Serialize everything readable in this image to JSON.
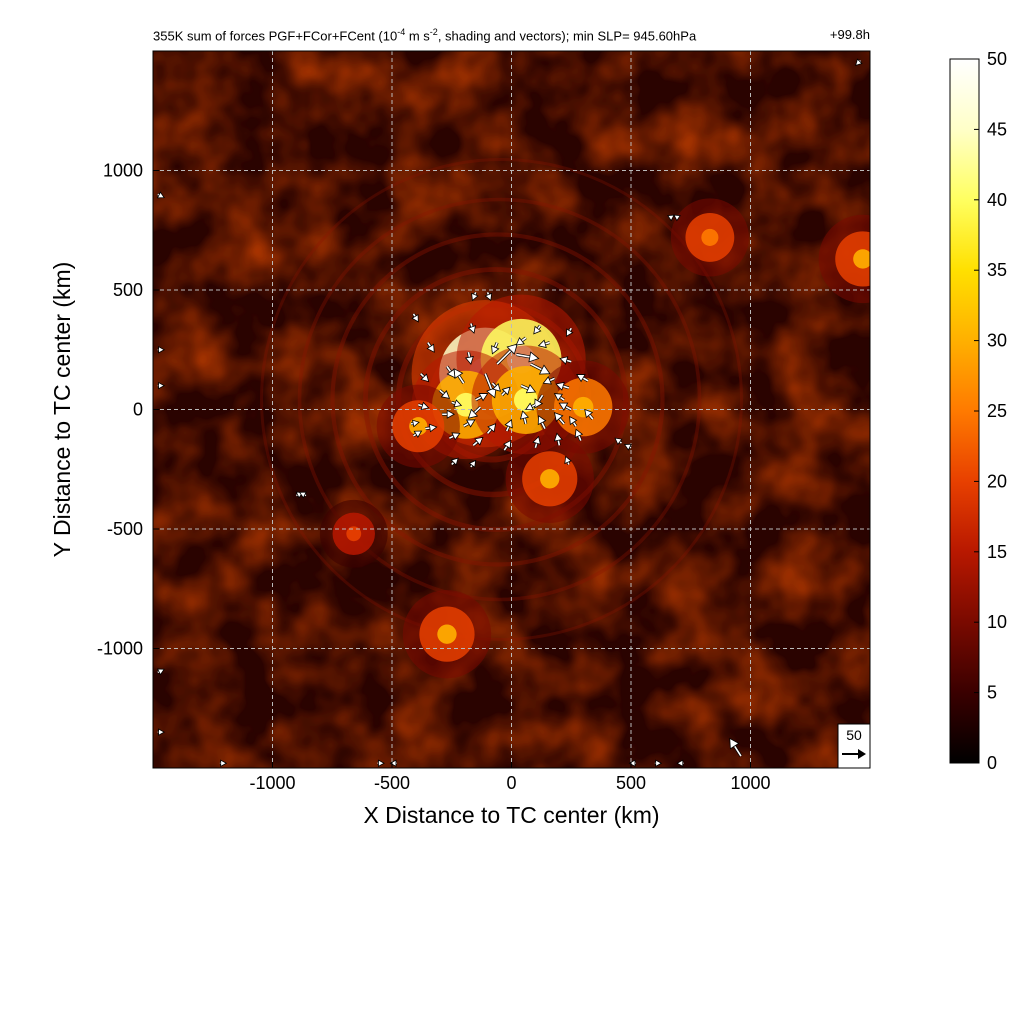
{
  "title": {
    "left_pre": "355K sum of forces PGF+FCor+FCent (10",
    "left_exp1": "-4",
    "left_mid": " m s",
    "left_exp2": "-2",
    "left_post": ", shading and vectors); min SLP= 945.60hPa",
    "right": "+99.8h"
  },
  "chart_data": {
    "type": "heatmap",
    "xlabel": "X Distance to TC center (km)",
    "ylabel": "Y Distance to TC center (km)",
    "xlim": [
      -1500,
      1500
    ],
    "ylim": [
      -1500,
      1500
    ],
    "xticks": [
      -1000,
      -500,
      0,
      500,
      1000
    ],
    "yticks": [
      -1000,
      -500,
      0,
      500,
      1000
    ],
    "xtick_labels": [
      "-1000",
      "-500",
      "0",
      "500",
      "1000"
    ],
    "ytick_labels": [
      "-1000",
      "-500",
      "0",
      "500",
      "1000"
    ],
    "grid": true,
    "colorbar": {
      "min": 0,
      "max": 50,
      "ticks": [
        0,
        5,
        10,
        15,
        20,
        25,
        30,
        35,
        40,
        45,
        50
      ],
      "tick_labels": [
        "0",
        "5",
        "10",
        "15",
        "20",
        "25",
        "30",
        "35",
        "40",
        "45",
        "50"
      ],
      "colormap": [
        "#000000",
        "#3a0000",
        "#7a0a00",
        "#b81800",
        "#e84000",
        "#ff7a00",
        "#ffb000",
        "#ffe000",
        "#ffff60",
        "#ffffc8",
        "#ffffff"
      ]
    },
    "hotspots": [
      {
        "x": -110,
        "y": 150,
        "value": 45
      },
      {
        "x": 40,
        "y": 210,
        "value": 38
      },
      {
        "x": -190,
        "y": 20,
        "value": 30
      },
      {
        "x": 60,
        "y": 40,
        "value": 30
      },
      {
        "x": 300,
        "y": 10,
        "value": 24
      },
      {
        "x": -390,
        "y": -70,
        "value": 20
      },
      {
        "x": 160,
        "y": -290,
        "value": 22
      },
      {
        "x": -270,
        "y": -940,
        "value": 22
      },
      {
        "x": 830,
        "y": 720,
        "value": 18
      },
      {
        "x": 1470,
        "y": 630,
        "value": 22
      },
      {
        "x": -660,
        "y": -520,
        "value": 14
      }
    ],
    "vector_reference": {
      "value": "50"
    },
    "vectors": [
      {
        "x": -110,
        "y": 150,
        "u": 12,
        "v": -30
      },
      {
        "x": -60,
        "y": 190,
        "u": 25,
        "v": 25
      },
      {
        "x": 20,
        "y": 230,
        "u": 28,
        "v": -5
      },
      {
        "x": 80,
        "y": 190,
        "u": 24,
        "v": -12
      },
      {
        "x": -150,
        "y": 40,
        "u": 15,
        "v": 8
      },
      {
        "x": -130,
        "y": 10,
        "u": -15,
        "v": -14
      },
      {
        "x": -200,
        "y": 110,
        "u": -12,
        "v": 18
      },
      {
        "x": 40,
        "y": 100,
        "u": 18,
        "v": -8
      },
      {
        "x": 130,
        "y": 60,
        "u": -10,
        "v": -16
      },
      {
        "x": 180,
        "y": 130,
        "u": -14,
        "v": -6
      },
      {
        "x": 240,
        "y": 90,
        "u": -16,
        "v": 5
      },
      {
        "x": 250,
        "y": 0,
        "u": -15,
        "v": 8
      },
      {
        "x": 220,
        "y": -60,
        "u": -12,
        "v": 14
      },
      {
        "x": 140,
        "y": -80,
        "u": -8,
        "v": 16
      },
      {
        "x": 60,
        "y": -60,
        "u": -4,
        "v": 16
      },
      {
        "x": -20,
        "y": -90,
        "u": 6,
        "v": 14
      },
      {
        "x": -100,
        "y": -100,
        "u": 10,
        "v": 12
      },
      {
        "x": -200,
        "y": -70,
        "u": 14,
        "v": 8
      },
      {
        "x": -290,
        "y": -20,
        "u": 15,
        "v": 0
      },
      {
        "x": -300,
        "y": 80,
        "u": 12,
        "v": -10
      },
      {
        "x": -270,
        "y": 180,
        "u": 10,
        "v": -14
      },
      {
        "x": -180,
        "y": 240,
        "u": 3,
        "v": -15
      },
      {
        "x": -60,
        "y": 280,
        "u": -6,
        "v": -14
      },
      {
        "x": 60,
        "y": 300,
        "u": -12,
        "v": -9
      },
      {
        "x": 160,
        "y": 280,
        "u": -14,
        "v": -4
      },
      {
        "x": 250,
        "y": 200,
        "u": -14,
        "v": 4
      },
      {
        "x": 320,
        "y": 120,
        "u": -14,
        "v": 8
      },
      {
        "x": 340,
        "y": -40,
        "u": -10,
        "v": 12
      },
      {
        "x": 290,
        "y": -130,
        "u": -6,
        "v": 14
      },
      {
        "x": 200,
        "y": -150,
        "u": -3,
        "v": 15
      },
      {
        "x": 100,
        "y": -160,
        "u": 4,
        "v": 14
      },
      {
        "x": -30,
        "y": -170,
        "u": 8,
        "v": 12
      },
      {
        "x": -160,
        "y": -150,
        "u": 12,
        "v": 10
      },
      {
        "x": -260,
        "y": -120,
        "u": 13,
        "v": 6
      },
      {
        "x": -360,
        "y": -80,
        "u": 14,
        "v": 2
      },
      {
        "x": -390,
        "y": 20,
        "u": 13,
        "v": -4
      },
      {
        "x": -380,
        "y": 150,
        "u": 10,
        "v": -10
      },
      {
        "x": -350,
        "y": 280,
        "u": 8,
        "v": -12
      },
      {
        "x": -170,
        "y": 360,
        "u": 4,
        "v": -12
      },
      {
        "x": -150,
        "y": 490,
        "u": -4,
        "v": -10
      },
      {
        "x": -100,
        "y": 490,
        "u": 4,
        "v": -10
      },
      {
        "x": -410,
        "y": 400,
        "u": 6,
        "v": -10
      },
      {
        "x": 250,
        "y": 340,
        "u": -6,
        "v": -10
      },
      {
        "x": 120,
        "y": 350,
        "u": -8,
        "v": -10
      },
      {
        "x": -40,
        "y": 60,
        "u": 10,
        "v": 10
      },
      {
        "x": -80,
        "y": 110,
        "u": 10,
        "v": -10
      },
      {
        "x": 100,
        "y": 20,
        "u": -12,
        "v": -6
      },
      {
        "x": 220,
        "y": 40,
        "u": -12,
        "v": 8
      },
      {
        "x": 270,
        "y": -70,
        "u": -8,
        "v": 12
      },
      {
        "x": -250,
        "y": 30,
        "u": 12,
        "v": -4
      },
      {
        "x": -420,
        "y": -60,
        "u": 10,
        "v": 2
      },
      {
        "x": -410,
        "y": -110,
        "u": 10,
        "v": 6
      },
      {
        "x": -250,
        "y": -230,
        "u": 8,
        "v": 8
      },
      {
        "x": -170,
        "y": -240,
        "u": 6,
        "v": 8
      },
      {
        "x": 240,
        "y": -230,
        "u": -4,
        "v": 10
      },
      {
        "x": 460,
        "y": -140,
        "u": -8,
        "v": 6
      },
      {
        "x": 500,
        "y": -160,
        "u": -8,
        "v": 4
      },
      {
        "x": -900,
        "y": -360,
        "u": 8,
        "v": 4
      },
      {
        "x": -860,
        "y": -360,
        "u": -8,
        "v": 4
      },
      {
        "x": 660,
        "y": 800,
        "u": 6,
        "v": 4
      },
      {
        "x": 700,
        "y": 800,
        "u": -6,
        "v": 4
      },
      {
        "x": -1480,
        "y": 900,
        "u": 8,
        "v": -4
      },
      {
        "x": -1480,
        "y": 250,
        "u": 8,
        "v": 0
      },
      {
        "x": -1480,
        "y": 100,
        "u": 8,
        "v": 0
      },
      {
        "x": -1480,
        "y": -1100,
        "u": 8,
        "v": 4
      },
      {
        "x": -1480,
        "y": -1350,
        "u": 8,
        "v": 0
      },
      {
        "x": 960,
        "y": -1450,
        "u": -14,
        "v": 22
      },
      {
        "x": 520,
        "y": -1480,
        "u": -8,
        "v": 0
      },
      {
        "x": 600,
        "y": -1480,
        "u": 8,
        "v": 0
      },
      {
        "x": 720,
        "y": -1480,
        "u": -8,
        "v": 0
      },
      {
        "x": -1220,
        "y": -1480,
        "u": 8,
        "v": 0
      },
      {
        "x": -560,
        "y": -1480,
        "u": 8,
        "v": 0
      },
      {
        "x": -480,
        "y": -1480,
        "u": -8,
        "v": 0
      },
      {
        "x": 1460,
        "y": 1460,
        "u": -6,
        "v": -6
      }
    ]
  }
}
